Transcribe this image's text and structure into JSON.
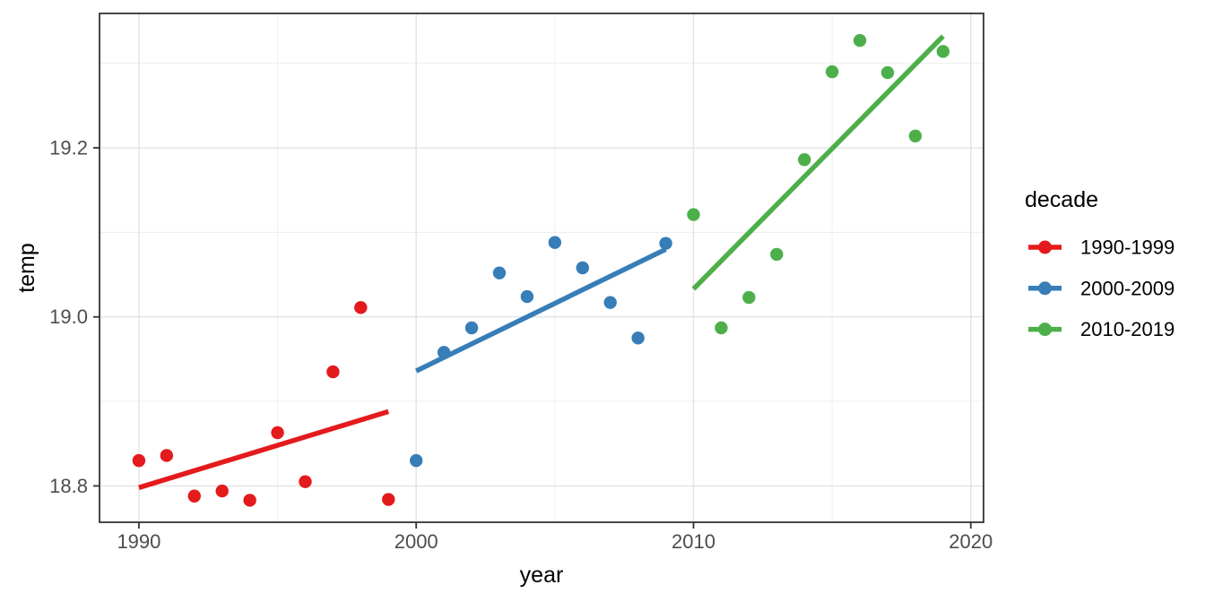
{
  "figure": {
    "background_color": "#FFFFFF",
    "panel_border_color": "#333333",
    "grid_major_color": "#E3E3E3",
    "grid_minor_color": "#ECECEC",
    "tick_mark_color": "#333333",
    "tick_label_color": "#4D4D4D",
    "axis_title_color": "#000000",
    "legend_text_color": "#000000"
  },
  "chart_data": {
    "type": "scatter",
    "title": "",
    "xlabel": "year",
    "ylabel": "temp",
    "xlim": [
      1988.58,
      2020.46
    ],
    "ylim": [
      18.757,
      19.359
    ],
    "grid": true,
    "legend_position": "right",
    "legend_title": "decade",
    "x_major_ticks": [
      1990,
      2000,
      2010,
      2020
    ],
    "x_tick_labels": [
      "1990",
      "2000",
      "2010",
      "2020"
    ],
    "x_minor_ticks": [
      1995,
      2005,
      2015
    ],
    "y_major_ticks": [
      18.8,
      19.0,
      19.2
    ],
    "y_tick_labels": [
      "18.8",
      "19.0",
      "19.2"
    ],
    "y_minor_ticks": [
      18.9,
      19.1,
      19.3
    ],
    "series": [
      {
        "name": "1990-1999",
        "color": "#E41A1C",
        "x": [
          1990,
          1991,
          1992,
          1993,
          1994,
          1995,
          1996,
          1997,
          1998,
          1999
        ],
        "y": [
          18.83,
          18.836,
          18.788,
          18.794,
          18.783,
          18.863,
          18.805,
          18.935,
          19.011,
          18.784
        ],
        "trend": {
          "x1": 1990,
          "y1": 18.798,
          "x2": 1999,
          "y2": 18.888
        }
      },
      {
        "name": "2000-2009",
        "color": "#377EB8",
        "x": [
          2000,
          2001,
          2002,
          2003,
          2004,
          2005,
          2006,
          2007,
          2008,
          2009
        ],
        "y": [
          18.83,
          18.958,
          18.987,
          19.052,
          19.024,
          19.088,
          19.058,
          19.017,
          18.975,
          19.087
        ],
        "trend": {
          "x1": 2000,
          "y1": 18.936,
          "x2": 2009,
          "y2": 19.08
        }
      },
      {
        "name": "2010-2019",
        "color": "#4DAF4A",
        "x": [
          2010,
          2011,
          2012,
          2013,
          2014,
          2015,
          2016,
          2017,
          2018,
          2019
        ],
        "y": [
          19.121,
          18.987,
          19.023,
          19.074,
          19.186,
          19.29,
          19.327,
          19.289,
          19.214,
          19.314
        ],
        "trend": {
          "x1": 2010,
          "y1": 19.033,
          "x2": 2019,
          "y2": 19.332
        }
      }
    ]
  }
}
